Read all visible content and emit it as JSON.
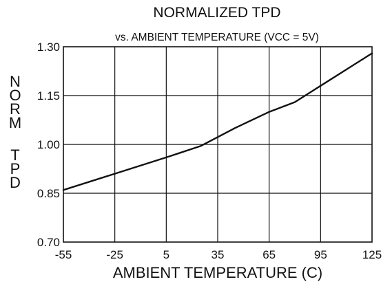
{
  "chart_data": {
    "type": "line",
    "title": "NORMALIZED TPD",
    "subtitle": "vs. AMBIENT TEMPERATURE (VCC = 5V)",
    "xlabel": "AMBIENT TEMPERATURE (C)",
    "ylabel": "NORM TPD",
    "xlim": [
      -55,
      125
    ],
    "ylim": [
      0.7,
      1.3
    ],
    "x_ticks": [
      -55,
      -25,
      5,
      35,
      65,
      95,
      125
    ],
    "x_tick_labels": [
      "-55",
      "-25",
      "5",
      "35",
      "65",
      "95",
      "125"
    ],
    "y_ticks": [
      0.7,
      0.85,
      1.0,
      1.15,
      1.3
    ],
    "y_tick_labels": [
      "0.70",
      "0.85",
      "1.00",
      "1.15",
      "1.30"
    ],
    "grid": true,
    "series": [
      {
        "x": [
          -55,
          -25,
          5,
          25,
          45,
          65,
          80,
          95,
          110,
          125
        ],
        "y": [
          0.86,
          0.91,
          0.96,
          0.995,
          1.05,
          1.1,
          1.13,
          1.18,
          1.23,
          1.28
        ]
      }
    ]
  }
}
